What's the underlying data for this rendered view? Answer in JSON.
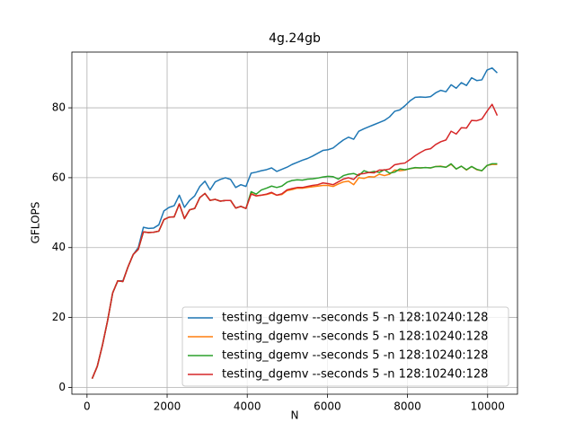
{
  "chart_data": {
    "type": "line",
    "title": "4g.24gb",
    "xlabel": "N",
    "ylabel": "GFLOPS",
    "x": [
      128,
      256,
      384,
      512,
      640,
      768,
      896,
      1024,
      1152,
      1280,
      1408,
      1536,
      1664,
      1792,
      1920,
      2048,
      2176,
      2304,
      2432,
      2560,
      2688,
      2816,
      2944,
      3072,
      3200,
      3328,
      3456,
      3584,
      3712,
      3840,
      3968,
      4096,
      4224,
      4352,
      4480,
      4608,
      4736,
      4864,
      4992,
      5120,
      5248,
      5376,
      5504,
      5632,
      5760,
      5888,
      6016,
      6144,
      6272,
      6400,
      6528,
      6656,
      6784,
      6912,
      7040,
      7168,
      7296,
      7424,
      7552,
      7680,
      7808,
      7936,
      8064,
      8192,
      8320,
      8448,
      8576,
      8704,
      8832,
      8960,
      9088,
      9216,
      9344,
      9472,
      9600,
      9728,
      9856,
      9984,
      10112,
      10240
    ],
    "series": [
      {
        "name": "testing_dgemv --seconds 5 -n 128:10240:128",
        "color": "#1f77b4",
        "values": [
          2.5,
          6,
          12,
          19,
          27,
          30.5,
          30.5,
          34.5,
          38,
          40,
          45.8,
          45.5,
          45.6,
          46.5,
          50.5,
          51.5,
          52,
          55,
          51.5,
          53.5,
          54.8,
          57.5,
          59,
          56.5,
          58.8,
          59.5,
          60,
          59.5,
          57.2,
          58,
          57.5,
          61.3,
          61.6,
          62,
          62.3,
          62.8,
          61.8,
          62.4,
          63,
          63.8,
          64.4,
          65,
          65.5,
          66.2,
          67,
          67.8,
          68,
          68.5,
          69.7,
          70.8,
          71.6,
          71,
          73.3,
          74,
          74.6,
          75.2,
          75.8,
          76.4,
          77.4,
          79,
          79.4,
          80.6,
          82,
          83,
          83.1,
          83,
          83.2,
          84.3,
          85,
          84.6,
          86.6,
          85.6,
          87.2,
          86.4,
          88.6,
          87.8,
          88,
          90.8,
          91.4,
          90
        ]
      },
      {
        "name": "testing_dgemv --seconds 5 -n 128:10240:128",
        "color": "#ff7f0e",
        "values": [
          2.5,
          6,
          12,
          19,
          27,
          30.5,
          30.3,
          34.5,
          38,
          39.5,
          44.5,
          44.3,
          44.4,
          44.7,
          48,
          48.7,
          48.8,
          52.5,
          48.3,
          50.8,
          51.2,
          54.3,
          55.5,
          53.5,
          53.8,
          53.3,
          53.5,
          53.5,
          51.3,
          51.8,
          51.2,
          55.5,
          54.8,
          55,
          55.2,
          55.6,
          55,
          55.2,
          56.3,
          56.6,
          57,
          57,
          57.2,
          57.4,
          57.6,
          57.8,
          57.8,
          57.5,
          58.2,
          58.8,
          59,
          58,
          60,
          59.8,
          60.3,
          60.2,
          61,
          60.6,
          61,
          62.2,
          62,
          62.2,
          62.6,
          62.8,
          62.8,
          62.9,
          62.8,
          63.2,
          63.3,
          63,
          63.8,
          62.5,
          63.3,
          62.2,
          63.2,
          62.3,
          62,
          63.5,
          63.8,
          63.8
        ]
      },
      {
        "name": "testing_dgemv --seconds 5 -n 128:10240:128",
        "color": "#2ca02c",
        "values": [
          2.5,
          6,
          12,
          19,
          27,
          30.5,
          30.3,
          34.5,
          38,
          39.5,
          44.5,
          44.3,
          44.4,
          44.7,
          48,
          48.7,
          48.8,
          52.5,
          48.3,
          50.8,
          51.2,
          54.3,
          55.5,
          53.5,
          53.8,
          53.3,
          53.5,
          53.5,
          51.3,
          51.8,
          51.2,
          56,
          55.3,
          56.5,
          57,
          57.6,
          57.2,
          57.6,
          58.7,
          59.2,
          59.4,
          59.3,
          59.6,
          59.7,
          59.9,
          60.2,
          60.4,
          60.3,
          59.6,
          60.6,
          61,
          61.2,
          60.6,
          62,
          61.5,
          61.8,
          61.5,
          62.3,
          61.3,
          61.6,
          62.5,
          62.3,
          62.6,
          62.9,
          62.8,
          62.9,
          62.8,
          63.2,
          63.2,
          63,
          64,
          62.5,
          63.3,
          62.3,
          63.2,
          62.4,
          62,
          63.5,
          64,
          64
        ]
      },
      {
        "name": "testing_dgemv --seconds 5 -n 128:10240:128",
        "color": "#d62728",
        "values": [
          2.5,
          6,
          12,
          19,
          27,
          30.5,
          30.3,
          34.5,
          38,
          39.5,
          44.5,
          44.3,
          44.4,
          44.7,
          48,
          48.7,
          48.8,
          52.5,
          48.3,
          50.8,
          51.2,
          54.3,
          55.5,
          53.5,
          53.8,
          53.3,
          53.5,
          53.5,
          51.3,
          51.8,
          51.2,
          55.3,
          54.8,
          55,
          55.3,
          55.8,
          55,
          55.4,
          56.5,
          56.9,
          57.2,
          57.2,
          57.5,
          57.8,
          58,
          58.5,
          58.3,
          58,
          58.8,
          59.6,
          60,
          59.5,
          61,
          61.2,
          61.5,
          61.4,
          62.2,
          62.2,
          62.5,
          63.7,
          64,
          64.2,
          65.2,
          66.3,
          67.2,
          68,
          68.3,
          69.5,
          70.3,
          70.8,
          73.3,
          72.5,
          74.3,
          74.2,
          76.4,
          76.3,
          76.8,
          79,
          81,
          77.8
        ]
      }
    ],
    "xlim": [
      -377.6,
      10745.6
    ],
    "xticks": [
      0,
      2000,
      4000,
      6000,
      8000,
      10000
    ],
    "ylim": [
      -1.95,
      95.95
    ],
    "yticks": [
      0,
      20,
      40,
      60,
      80
    ],
    "grid": true,
    "legend": "lower right"
  }
}
